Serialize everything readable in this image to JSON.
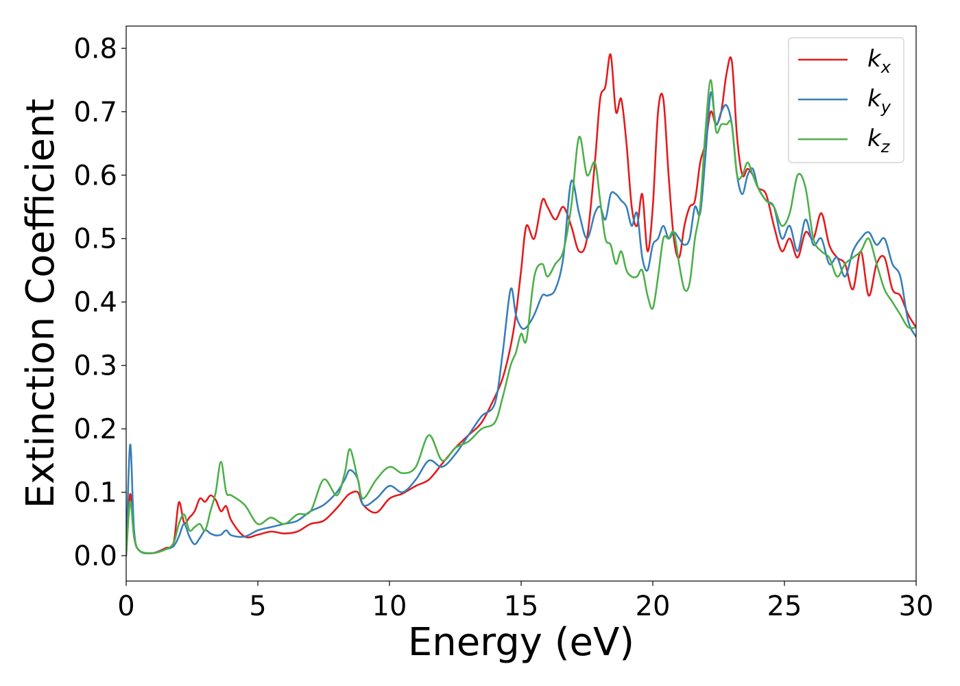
{
  "chart_data": {
    "type": "line",
    "title": "",
    "xlabel": "Energy (eV)",
    "ylabel": "Extinction Coefficient",
    "xlim": [
      0,
      30
    ],
    "ylim": [
      -0.04,
      0.835
    ],
    "xticks": [
      0,
      5,
      10,
      15,
      20,
      25,
      30
    ],
    "xtick_labels": [
      "0",
      "5",
      "10",
      "15",
      "20",
      "25",
      "30"
    ],
    "yticks": [
      0.0,
      0.1,
      0.2,
      0.3,
      0.4,
      0.5,
      0.6,
      0.7,
      0.8
    ],
    "ytick_labels": [
      "0.0",
      "0.1",
      "0.2",
      "0.3",
      "0.4",
      "0.5",
      "0.6",
      "0.7",
      "0.8"
    ],
    "grid": false,
    "legend_position": "top-right",
    "series": [
      {
        "name": "kx",
        "label_base": "k",
        "label_sub": "x",
        "color": "#e41a1c",
        "x": [
          0,
          0.15,
          0.3,
          0.5,
          1.0,
          1.5,
          1.8,
          2.0,
          2.2,
          2.4,
          2.6,
          2.8,
          3.0,
          3.2,
          3.4,
          3.6,
          3.8,
          4.0,
          4.5,
          5.0,
          5.5,
          6.0,
          6.5,
          7.0,
          7.5,
          8.0,
          8.3,
          8.5,
          8.8,
          9.0,
          9.5,
          10.0,
          10.5,
          11.0,
          11.5,
          12.0,
          12.5,
          13.0,
          13.5,
          14.0,
          14.3,
          14.6,
          14.8,
          15.0,
          15.2,
          15.5,
          15.8,
          16.0,
          16.3,
          16.6,
          16.9,
          17.2,
          17.5,
          17.8,
          18.0,
          18.2,
          18.4,
          18.6,
          18.8,
          19.0,
          19.2,
          19.4,
          19.6,
          19.8,
          20.0,
          20.2,
          20.4,
          20.6,
          20.8,
          21.0,
          21.2,
          21.4,
          21.6,
          21.8,
          22.0,
          22.2,
          22.4,
          22.6,
          22.8,
          23.0,
          23.2,
          23.4,
          23.6,
          23.8,
          24.0,
          24.3,
          24.6,
          24.9,
          25.2,
          25.5,
          25.8,
          26.1,
          26.4,
          26.7,
          27.0,
          27.3,
          27.6,
          27.9,
          28.2,
          28.5,
          28.8,
          29.1,
          29.4,
          29.7,
          30.0
        ],
        "values": [
          0.0,
          0.097,
          0.03,
          0.008,
          0.004,
          0.012,
          0.02,
          0.084,
          0.052,
          0.06,
          0.07,
          0.09,
          0.085,
          0.095,
          0.088,
          0.07,
          0.078,
          0.055,
          0.03,
          0.033,
          0.038,
          0.035,
          0.038,
          0.05,
          0.055,
          0.075,
          0.09,
          0.098,
          0.1,
          0.08,
          0.068,
          0.09,
          0.098,
          0.11,
          0.12,
          0.145,
          0.17,
          0.19,
          0.21,
          0.25,
          0.28,
          0.33,
          0.38,
          0.45,
          0.52,
          0.5,
          0.56,
          0.55,
          0.53,
          0.55,
          0.52,
          0.48,
          0.5,
          0.62,
          0.72,
          0.74,
          0.79,
          0.7,
          0.72,
          0.65,
          0.55,
          0.52,
          0.57,
          0.48,
          0.55,
          0.7,
          0.72,
          0.6,
          0.5,
          0.47,
          0.52,
          0.55,
          0.56,
          0.62,
          0.65,
          0.7,
          0.68,
          0.7,
          0.76,
          0.78,
          0.66,
          0.6,
          0.61,
          0.6,
          0.58,
          0.57,
          0.52,
          0.48,
          0.5,
          0.47,
          0.51,
          0.5,
          0.54,
          0.49,
          0.47,
          0.46,
          0.42,
          0.48,
          0.41,
          0.46,
          0.47,
          0.42,
          0.41,
          0.38,
          0.36
        ]
      },
      {
        "name": "ky",
        "label_base": "k",
        "label_sub": "y",
        "color": "#377eb8",
        "x": [
          0,
          0.15,
          0.3,
          0.5,
          1.0,
          1.5,
          1.8,
          2.0,
          2.2,
          2.4,
          2.6,
          2.8,
          3.0,
          3.2,
          3.4,
          3.6,
          3.8,
          4.0,
          4.5,
          5.0,
          5.5,
          6.0,
          6.5,
          7.0,
          7.5,
          8.0,
          8.3,
          8.5,
          8.8,
          9.0,
          9.5,
          10.0,
          10.5,
          11.0,
          11.5,
          12.0,
          12.5,
          13.0,
          13.5,
          14.0,
          14.3,
          14.6,
          14.8,
          15.0,
          15.2,
          15.5,
          15.8,
          16.0,
          16.3,
          16.6,
          16.9,
          17.2,
          17.5,
          17.8,
          18.0,
          18.2,
          18.4,
          18.6,
          18.8,
          19.0,
          19.2,
          19.4,
          19.6,
          19.8,
          20.0,
          20.2,
          20.4,
          20.6,
          20.8,
          21.0,
          21.2,
          21.4,
          21.6,
          21.8,
          22.0,
          22.2,
          22.4,
          22.6,
          22.8,
          23.0,
          23.2,
          23.4,
          23.6,
          23.8,
          24.0,
          24.3,
          24.6,
          24.9,
          25.2,
          25.5,
          25.8,
          26.1,
          26.4,
          26.7,
          27.0,
          27.3,
          27.6,
          27.9,
          28.2,
          28.5,
          28.8,
          29.1,
          29.4,
          29.7,
          30.0
        ],
        "values": [
          0.0,
          0.175,
          0.04,
          0.008,
          0.004,
          0.01,
          0.015,
          0.03,
          0.05,
          0.03,
          0.018,
          0.028,
          0.04,
          0.035,
          0.032,
          0.033,
          0.04,
          0.032,
          0.03,
          0.04,
          0.045,
          0.05,
          0.055,
          0.07,
          0.08,
          0.1,
          0.12,
          0.135,
          0.12,
          0.08,
          0.09,
          0.11,
          0.1,
          0.12,
          0.15,
          0.14,
          0.16,
          0.19,
          0.22,
          0.24,
          0.32,
          0.42,
          0.38,
          0.36,
          0.36,
          0.38,
          0.41,
          0.41,
          0.42,
          0.47,
          0.59,
          0.54,
          0.5,
          0.54,
          0.55,
          0.53,
          0.57,
          0.57,
          0.56,
          0.55,
          0.52,
          0.54,
          0.47,
          0.45,
          0.49,
          0.5,
          0.52,
          0.5,
          0.51,
          0.5,
          0.49,
          0.5,
          0.55,
          0.54,
          0.63,
          0.73,
          0.68,
          0.7,
          0.71,
          0.68,
          0.6,
          0.57,
          0.6,
          0.61,
          0.58,
          0.56,
          0.55,
          0.5,
          0.52,
          0.48,
          0.53,
          0.49,
          0.5,
          0.46,
          0.47,
          0.44,
          0.48,
          0.5,
          0.51,
          0.49,
          0.5,
          0.46,
          0.44,
          0.37,
          0.345
        ]
      },
      {
        "name": "kz",
        "label_base": "k",
        "label_sub": "z",
        "color": "#4daf4a",
        "x": [
          0,
          0.15,
          0.3,
          0.5,
          1.0,
          1.5,
          1.8,
          2.0,
          2.2,
          2.4,
          2.6,
          2.8,
          3.0,
          3.2,
          3.4,
          3.6,
          3.8,
          4.0,
          4.5,
          5.0,
          5.5,
          6.0,
          6.5,
          7.0,
          7.5,
          8.0,
          8.3,
          8.5,
          8.8,
          9.0,
          9.5,
          10.0,
          10.5,
          11.0,
          11.5,
          12.0,
          12.5,
          13.0,
          13.5,
          14.0,
          14.3,
          14.6,
          14.8,
          15.0,
          15.2,
          15.5,
          15.8,
          16.0,
          16.3,
          16.6,
          16.9,
          17.2,
          17.5,
          17.8,
          18.0,
          18.2,
          18.4,
          18.6,
          18.8,
          19.0,
          19.2,
          19.4,
          19.6,
          19.8,
          20.0,
          20.2,
          20.4,
          20.6,
          20.8,
          21.0,
          21.2,
          21.4,
          21.6,
          21.8,
          22.0,
          22.2,
          22.4,
          22.6,
          22.8,
          23.0,
          23.2,
          23.4,
          23.6,
          23.8,
          24.0,
          24.3,
          24.6,
          24.9,
          25.2,
          25.5,
          25.8,
          26.1,
          26.4,
          26.7,
          27.0,
          27.3,
          27.6,
          27.9,
          28.2,
          28.5,
          28.8,
          29.1,
          29.4,
          29.7,
          30.0
        ],
        "values": [
          0.0,
          0.085,
          0.03,
          0.008,
          0.004,
          0.01,
          0.02,
          0.05,
          0.065,
          0.04,
          0.045,
          0.05,
          0.04,
          0.07,
          0.1,
          0.148,
          0.1,
          0.095,
          0.08,
          0.05,
          0.06,
          0.05,
          0.065,
          0.07,
          0.12,
          0.095,
          0.13,
          0.168,
          0.12,
          0.09,
          0.12,
          0.14,
          0.13,
          0.14,
          0.19,
          0.15,
          0.17,
          0.18,
          0.2,
          0.21,
          0.25,
          0.3,
          0.32,
          0.35,
          0.34,
          0.44,
          0.46,
          0.44,
          0.46,
          0.48,
          0.55,
          0.66,
          0.6,
          0.62,
          0.56,
          0.5,
          0.49,
          0.46,
          0.48,
          0.45,
          0.44,
          0.44,
          0.45,
          0.41,
          0.39,
          0.44,
          0.5,
          0.5,
          0.51,
          0.46,
          0.42,
          0.43,
          0.5,
          0.55,
          0.67,
          0.75,
          0.67,
          0.68,
          0.68,
          0.68,
          0.6,
          0.6,
          0.62,
          0.6,
          0.58,
          0.56,
          0.55,
          0.52,
          0.54,
          0.6,
          0.58,
          0.5,
          0.48,
          0.47,
          0.44,
          0.46,
          0.47,
          0.48,
          0.5,
          0.46,
          0.42,
          0.4,
          0.38,
          0.36,
          0.36
        ]
      }
    ]
  }
}
